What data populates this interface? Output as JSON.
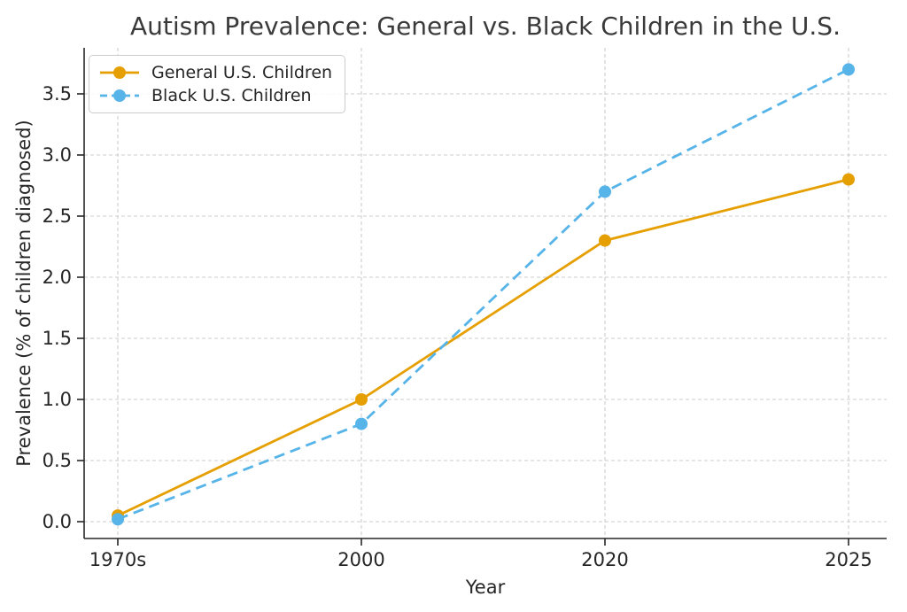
{
  "chart_data": {
    "type": "line",
    "title": "Autism Prevalence: General vs. Black Children in the U.S.",
    "xlabel": "Year",
    "ylabel": "Prevalence (% of children diagnosed)",
    "categories": [
      "1970s",
      "2000",
      "2020",
      "2025"
    ],
    "series": [
      {
        "name": "General U.S. Children",
        "values": [
          0.05,
          1.0,
          2.3,
          2.8
        ],
        "color": "#E69F00",
        "line_style": "solid",
        "marker": "circle"
      },
      {
        "name": "Black U.S. Children",
        "values": [
          0.02,
          0.8,
          2.7,
          3.7
        ],
        "color": "#56B4E9",
        "line_style": "dashed",
        "marker": "circle"
      }
    ],
    "yticks": [
      0.0,
      0.5,
      1.0,
      1.5,
      2.0,
      2.5,
      3.0,
      3.5
    ],
    "ylim": [
      -0.17,
      3.89
    ],
    "grid": true,
    "grid_color": "#cccccc",
    "axis_color": "#262626",
    "legend_position": "upper left"
  }
}
